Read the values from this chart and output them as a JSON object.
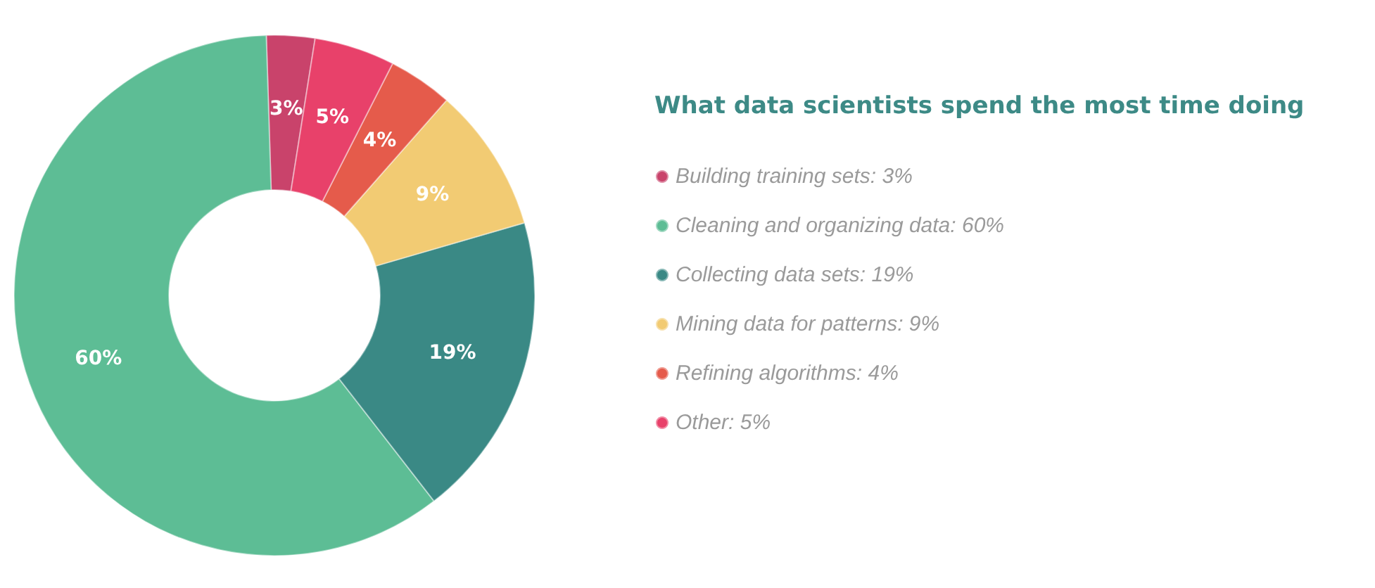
{
  "chart_data": {
    "type": "donut",
    "title": "What data scientists spend the most time doing",
    "categories": [
      "Building training sets: 3%",
      "Cleaning and organizing data: 60%",
      "Collecting data sets: 19%",
      "Mining data for patterns: 9%",
      "Refining algorithms: 4%",
      "Other: 5%"
    ],
    "values": [
      3,
      60,
      19,
      9,
      4,
      5
    ],
    "colors": [
      "#c9436b",
      "#5dbd95",
      "#3a8985",
      "#f2cb73",
      "#e55b4b",
      "#e8416a"
    ],
    "value_labels": [
      "3%",
      "60%",
      "19%",
      "9%",
      "4%",
      "5%"
    ],
    "legend": "right"
  }
}
